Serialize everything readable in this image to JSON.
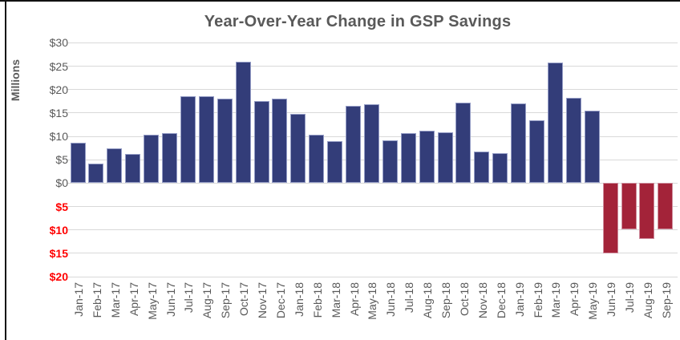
{
  "chart_data": {
    "type": "bar",
    "title": "Year-Over-Year Change in GSP Savings",
    "ylabel": "Millions",
    "xlabel": "",
    "grid": true,
    "legend": "none",
    "ylim": [
      -20,
      30
    ],
    "categories": [
      "Jan-17",
      "Feb-17",
      "Mar-17",
      "Apr-17",
      "May-17",
      "Jun-17",
      "Jul-17",
      "Aug-17",
      "Sep-17",
      "Oct-17",
      "Nov-17",
      "Dec-17",
      "Jan-18",
      "Feb-18",
      "Mar-18",
      "Apr-18",
      "May-18",
      "Jun-18",
      "Jul-18",
      "Aug-18",
      "Sep-18",
      "Oct-18",
      "Nov-18",
      "Dec-18",
      "Jan-19",
      "Feb-19",
      "Mar-19",
      "Apr-19",
      "May-19",
      "Jun-19",
      "Jul-19",
      "Aug-19",
      "Sep-19"
    ],
    "values": [
      8.7,
      4.2,
      7.4,
      6.2,
      10.3,
      10.7,
      18.6,
      18.6,
      18.1,
      26.0,
      17.5,
      18.1,
      14.9,
      10.3,
      9.0,
      16.6,
      16.9,
      9.2,
      10.7,
      11.3,
      10.9,
      17.2,
      6.7,
      6.4,
      17.0,
      13.5,
      25.8,
      18.3,
      15.5,
      -15.0,
      -9.9,
      -11.9,
      -9.8
    ],
    "yticks": [
      {
        "value": 30,
        "label": "$30"
      },
      {
        "value": 25,
        "label": "$25"
      },
      {
        "value": 20,
        "label": "$20"
      },
      {
        "value": 15,
        "label": "$15"
      },
      {
        "value": 10,
        "label": "$10"
      },
      {
        "value": 5,
        "label": "$5"
      },
      {
        "value": 0,
        "label": "$0"
      },
      {
        "value": -5,
        "label": "$5"
      },
      {
        "value": -10,
        "label": "$10"
      },
      {
        "value": -15,
        "label": "$15"
      },
      {
        "value": -20,
        "label": "$20"
      }
    ]
  },
  "colors": {
    "positive_bar": "#333d79",
    "positive_bar_border": "#959dc6",
    "negative_bar": "#a32339",
    "negative_bar_border": "#ce8e9e",
    "gridline": "#d9d9d9",
    "title_text": "#595959",
    "axis_text": "#595959",
    "negative_axis_text": "#ff0000"
  }
}
